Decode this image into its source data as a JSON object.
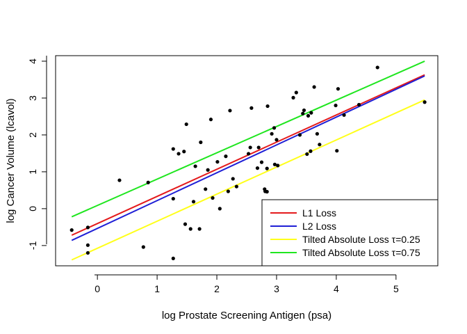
{
  "chart_data": {
    "type": "scatter",
    "title": "",
    "xlabel": "log Prostate Screening Antigen (psa)",
    "ylabel": "log Cancer Volume (lcavol)",
    "xlim": [
      -0.7,
      5.7
    ],
    "ylim": [
      -1.55,
      4.15
    ],
    "x_ticks": [
      0,
      1,
      2,
      3,
      4,
      5
    ],
    "y_ticks": [
      -1,
      0,
      1,
      2,
      3,
      4
    ],
    "grid": false,
    "legend_position": "bottom-right",
    "points": [
      {
        "x": -0.43,
        "y": -0.58
      },
      {
        "x": -0.16,
        "y": -0.51
      },
      {
        "x": -0.16,
        "y": -0.99
      },
      {
        "x": -0.16,
        "y": -1.2
      },
      {
        "x": 0.37,
        "y": 0.77
      },
      {
        "x": 0.77,
        "y": -1.04
      },
      {
        "x": 0.85,
        "y": 0.71
      },
      {
        "x": 1.27,
        "y": 1.62
      },
      {
        "x": 1.27,
        "y": 0.27
      },
      {
        "x": 1.27,
        "y": -1.35
      },
      {
        "x": 1.36,
        "y": 1.49
      },
      {
        "x": 1.45,
        "y": 1.55
      },
      {
        "x": 1.47,
        "y": -0.42
      },
      {
        "x": 1.49,
        "y": 2.29
      },
      {
        "x": 1.56,
        "y": -0.55
      },
      {
        "x": 1.61,
        "y": 0.19
      },
      {
        "x": 1.64,
        "y": 1.15
      },
      {
        "x": 1.71,
        "y": -0.55
      },
      {
        "x": 1.73,
        "y": 1.8
      },
      {
        "x": 1.81,
        "y": 0.53
      },
      {
        "x": 1.85,
        "y": 1.05
      },
      {
        "x": 1.9,
        "y": 2.42
      },
      {
        "x": 1.93,
        "y": 0.29
      },
      {
        "x": 2.01,
        "y": 1.27
      },
      {
        "x": 2.05,
        "y": 0.0
      },
      {
        "x": 2.15,
        "y": 1.42
      },
      {
        "x": 2.19,
        "y": 0.47
      },
      {
        "x": 2.22,
        "y": 2.66
      },
      {
        "x": 2.27,
        "y": 0.81
      },
      {
        "x": 2.33,
        "y": 0.6
      },
      {
        "x": 2.53,
        "y": 1.49
      },
      {
        "x": 2.56,
        "y": 1.66
      },
      {
        "x": 2.58,
        "y": 2.73
      },
      {
        "x": 2.68,
        "y": 1.1
      },
      {
        "x": 2.7,
        "y": 1.66
      },
      {
        "x": 2.75,
        "y": 1.26
      },
      {
        "x": 2.8,
        "y": 0.53
      },
      {
        "x": 2.81,
        "y": 0.47
      },
      {
        "x": 2.84,
        "y": 0.46
      },
      {
        "x": 2.85,
        "y": 2.78
      },
      {
        "x": 2.84,
        "y": 1.09
      },
      {
        "x": 2.92,
        "y": 2.03
      },
      {
        "x": 2.96,
        "y": 2.19
      },
      {
        "x": 2.97,
        "y": 1.2
      },
      {
        "x": 3.0,
        "y": 1.87
      },
      {
        "x": 3.02,
        "y": 1.17
      },
      {
        "x": 3.28,
        "y": 3.01
      },
      {
        "x": 3.33,
        "y": 3.15
      },
      {
        "x": 3.39,
        "y": 2.0
      },
      {
        "x": 3.44,
        "y": 2.58
      },
      {
        "x": 3.46,
        "y": 2.67
      },
      {
        "x": 3.51,
        "y": 1.48
      },
      {
        "x": 3.53,
        "y": 2.52
      },
      {
        "x": 3.57,
        "y": 1.56
      },
      {
        "x": 3.58,
        "y": 2.6
      },
      {
        "x": 3.63,
        "y": 3.3
      },
      {
        "x": 3.68,
        "y": 2.03
      },
      {
        "x": 3.72,
        "y": 1.74
      },
      {
        "x": 3.99,
        "y": 2.8
      },
      {
        "x": 4.01,
        "y": 1.57
      },
      {
        "x": 4.03,
        "y": 3.25
      },
      {
        "x": 4.13,
        "y": 2.54
      },
      {
        "x": 4.38,
        "y": 2.82
      },
      {
        "x": 4.69,
        "y": 3.83
      },
      {
        "x": 5.48,
        "y": 2.89
      }
    ],
    "series": [
      {
        "name": "L1 Loss",
        "color": "#e41a1c",
        "x": [
          -0.43,
          5.48
        ],
        "y": [
          -0.72,
          3.63
        ]
      },
      {
        "name": "L2 Loss",
        "color": "#1f1fd6",
        "x": [
          -0.43,
          5.48
        ],
        "y": [
          -0.86,
          3.6
        ]
      },
      {
        "name": "Tilted Absolute Loss τ=0.25",
        "color": "#ffff1a",
        "x": [
          -0.43,
          5.48
        ],
        "y": [
          -1.39,
          2.95
        ]
      },
      {
        "name": "Tilted Absolute Loss τ=0.75",
        "color": "#1fe61f",
        "x": [
          -0.43,
          5.48
        ],
        "y": [
          -0.22,
          4.0
        ]
      }
    ]
  }
}
